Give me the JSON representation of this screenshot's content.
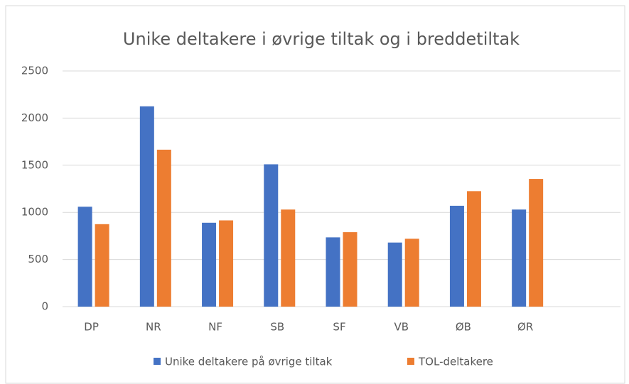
{
  "chart_data": {
    "type": "bar",
    "title": "Unike deltakere i øvrige tiltak og i breddetiltak",
    "categories": [
      "DP",
      "NR",
      "NF",
      "SB",
      "SF",
      "VB",
      "ØB",
      "ØR",
      null
    ],
    "series": [
      {
        "name": "Unike deltakere på øvrige tiltak",
        "color": "#4472c4",
        "values": [
          1060,
          2125,
          890,
          1510,
          735,
          680,
          1070,
          1030,
          null
        ]
      },
      {
        "name": "TOL-deltakere",
        "color": "#ed7d31",
        "values": [
          875,
          1665,
          915,
          1030,
          790,
          720,
          1225,
          1355,
          null
        ]
      }
    ],
    "ylim": [
      0,
      2500
    ],
    "yticks": [
      0,
      500,
      1000,
      1500,
      2000,
      2500
    ],
    "grid": true,
    "legend": "bottom"
  }
}
